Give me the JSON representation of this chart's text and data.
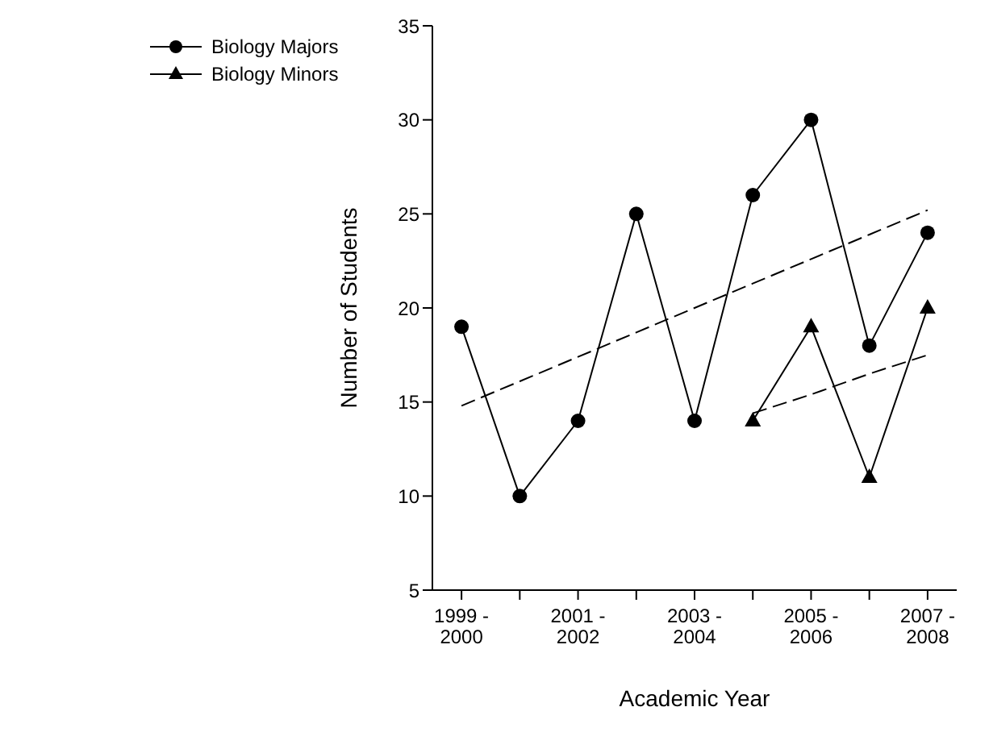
{
  "chart_data": {
    "type": "line",
    "xlabel": "Academic Year",
    "ylabel": "Number of Students",
    "categories": [
      "1999 -\n2000",
      null,
      "2001 -\n2002",
      null,
      "2003 -\n2004",
      null,
      "2005 -\n2006",
      null,
      "2007 -\n2008"
    ],
    "series": [
      {
        "name": "Biology Majors",
        "color": "#000000",
        "marker": "circle",
        "line_style": "solid",
        "values": [
          19,
          10,
          14,
          25,
          14,
          26,
          30,
          18,
          24
        ]
      },
      {
        "name": "Biology Minors",
        "color": "#000000",
        "marker": "triangle",
        "line_style": "solid",
        "values": [
          null,
          null,
          null,
          null,
          null,
          14,
          19,
          11,
          20
        ]
      },
      {
        "type": "line",
        "color": "#000000",
        "marker": "none",
        "line_style": "dashed",
        "values": [
          14.8,
          16.1,
          17.4,
          18.7,
          20.0,
          21.3,
          22.6,
          23.9,
          25.2
        ]
      },
      {
        "type": "line",
        "color": "#000000",
        "marker": "none",
        "line_style": "dashed",
        "values": [
          null,
          null,
          null,
          null,
          null,
          14.4,
          15.4,
          16.5,
          17.5
        ]
      }
    ],
    "ylim": [
      5,
      35
    ],
    "yticks": [
      5,
      10,
      15,
      20,
      25,
      30,
      35
    ],
    "grid": false,
    "legend": "top left"
  }
}
